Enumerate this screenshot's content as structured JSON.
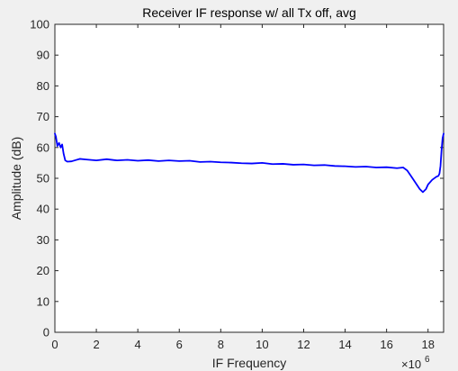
{
  "chart_data": {
    "type": "line",
    "title": "Receiver IF response w/ all Tx off, avg",
    "xlabel": "IF Frequency",
    "ylabel": "Amplitude (dB)",
    "x_exponent_base": "×10",
    "x_exponent_power": "6",
    "xlim": [
      0,
      18.75
    ],
    "ylim": [
      0,
      100
    ],
    "x_ticks": [
      0,
      2,
      4,
      6,
      8,
      10,
      12,
      14,
      16,
      18
    ],
    "y_ticks": [
      0,
      10,
      20,
      30,
      40,
      50,
      60,
      70,
      80,
      90,
      100
    ],
    "grid": false,
    "line_color": "#0000ff",
    "series": [
      {
        "x": [
          0,
          0.05,
          0.12,
          0.2,
          0.28,
          0.35,
          0.42,
          0.5,
          0.6,
          0.8,
          1.0,
          1.2,
          1.5,
          2.0,
          2.5,
          3.0,
          3.5,
          4.0,
          4.5,
          5.0,
          5.5,
          6.0,
          6.5,
          7.0,
          7.5,
          8.0,
          8.5,
          9.0,
          9.5,
          10.0,
          10.5,
          11.0,
          11.5,
          12.0,
          12.5,
          13.0,
          13.5,
          14.0,
          14.5,
          15.0,
          15.5,
          16.0,
          16.5,
          16.8,
          17.0,
          17.2,
          17.4,
          17.6,
          17.75,
          17.9,
          18.0,
          18.2,
          18.4,
          18.5,
          18.55,
          18.6,
          18.65,
          18.7,
          18.75
        ],
        "y": [
          64.5,
          63.5,
          60.5,
          61.5,
          60.0,
          61.0,
          58.0,
          55.8,
          55.4,
          55.5,
          55.9,
          56.3,
          56.1,
          55.8,
          56.2,
          55.8,
          56.0,
          55.7,
          55.9,
          55.6,
          55.8,
          55.6,
          55.7,
          55.3,
          55.4,
          55.2,
          55.1,
          54.9,
          54.8,
          55.0,
          54.6,
          54.7,
          54.4,
          54.5,
          54.2,
          54.3,
          54.0,
          53.9,
          53.7,
          53.8,
          53.5,
          53.6,
          53.3,
          53.5,
          52.5,
          50.5,
          48.5,
          46.5,
          45.5,
          46.5,
          48.0,
          49.5,
          50.5,
          50.8,
          51.5,
          54.0,
          59.0,
          63.0,
          64.5
        ]
      }
    ]
  }
}
